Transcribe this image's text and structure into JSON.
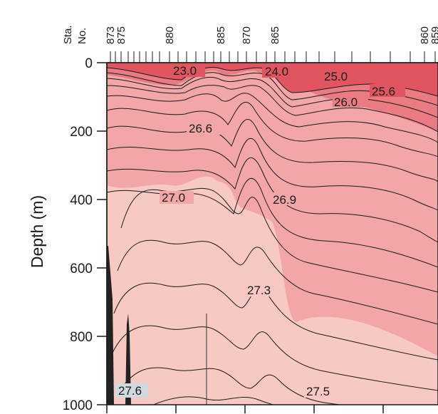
{
  "chart_data": {
    "type": "contour",
    "xlabel": "Sta. No.",
    "ylabel": "Depth (m)",
    "ylim": [
      0,
      1000
    ],
    "y_inverted": true,
    "y_ticks": [
      0,
      200,
      400,
      600,
      800,
      1000
    ],
    "stations": [
      "873",
      "875",
      "880",
      "885",
      "870",
      "865",
      "860",
      "859"
    ],
    "station_label_line1": "Sta.",
    "station_label_line2": "No.",
    "contour_labels": [
      "23.0",
      "24.0",
      "25.0",
      "25.6",
      "26.0",
      "26.6",
      "27.0",
      "26.9",
      "27.3",
      "27.6",
      "27.5"
    ],
    "colors": {
      "fill_shallow": "#e0555f",
      "fill_mid": "#ea7b82",
      "fill_upper": "#f3a6a8",
      "fill_deep": "#f8c9c2",
      "bottom": "#222222",
      "label_box": "#d0d8e0"
    }
  }
}
